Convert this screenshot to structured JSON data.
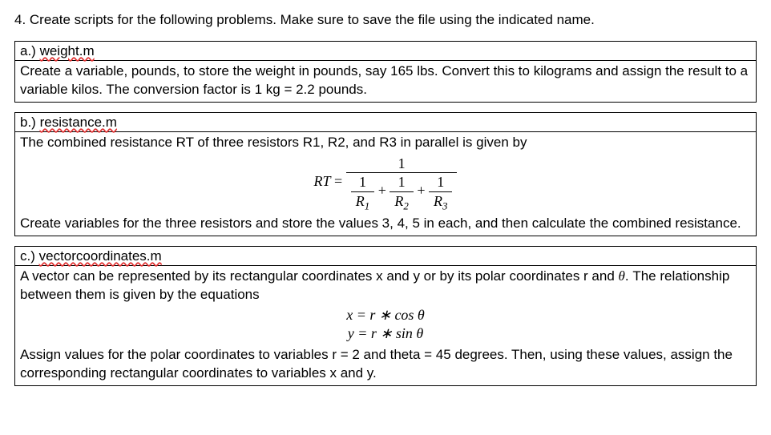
{
  "prompt": "4. Create scripts for the following problems. Make sure to save the file using the indicated name.",
  "problems": {
    "a": {
      "letter": "a.)",
      "filename": "weight.m",
      "body": "Create a variable, pounds, to store the weight in pounds, say 165 lbs. Convert this to kilograms and assign the result to a variable kilos. The conversion factor is 1 kg = 2.2 pounds."
    },
    "b": {
      "letter": "b.)",
      "filename": "resistance.m",
      "intro": "The combined resistance RT of three resistors R1, R2, and R3 in parallel is given by",
      "formula": {
        "lhs": "RT",
        "eq": "=",
        "num": "1",
        "d1_num": "1",
        "d1_den": "R",
        "d1_sub": "1",
        "plus1": "+",
        "d2_num": "1",
        "d2_den": "R",
        "d2_sub": "2",
        "plus2": "+",
        "d3_num": "1",
        "d3_den": "R",
        "d3_sub": "3"
      },
      "outro": "Create variables for the three resistors and store the values 3, 4, 5 in each, and then calculate the combined resistance."
    },
    "c": {
      "letter": "c.)",
      "filename": "vectorcoordinates.m",
      "intro_pre": "A vector can be represented by its rectangular coordinates x and y or by its polar coordinates r and ",
      "theta": "θ",
      "intro_post": ". The relationship between them is given by the equations",
      "eq1": "x = r ∗ cos θ",
      "eq2": "y = r ∗ sin θ",
      "outro": "Assign values for the polar coordinates to variables r = 2 and theta = 45 degrees. Then, using these values, assign the corresponding rectangular coordinates to variables x and y."
    }
  },
  "colors": {
    "text": "#000000",
    "background": "#ffffff",
    "border": "#000000",
    "wavy_underline": "#e03030"
  }
}
